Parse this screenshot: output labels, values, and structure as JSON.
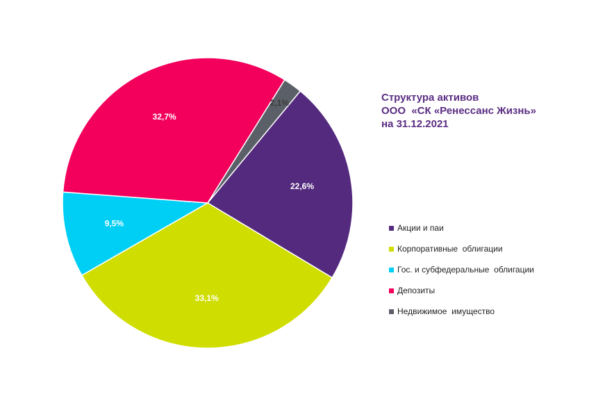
{
  "title_lines": [
    "Структура активов",
    "ООО  «СК «Ренессанс Жизнь»",
    "на 31.12.2021"
  ],
  "chart_data": {
    "type": "pie",
    "title": "Структура активов ООО  «СК «Ренессанс Жизнь» на 31.12.2021",
    "legend_position": "right",
    "start_angle_deg": 39.6,
    "direction": "clockwise",
    "slices": [
      {
        "name": "Акции и паи",
        "value": 22.6,
        "label": "22,6%",
        "color": "#542a7e"
      },
      {
        "name": "Корпоративные  облигации",
        "value": 33.1,
        "label": "33,1%",
        "color": "#cfdd00"
      },
      {
        "name": "Гос. и субфедеральные  облигации",
        "value": 9.5,
        "label": "9,5%",
        "color": "#00cff5"
      },
      {
        "name": "Депозиты",
        "value": 32.7,
        "label": "32,7%",
        "color": "#f2005c"
      },
      {
        "name": "Недвижимое  имущество",
        "value": 2.1,
        "label": "2,1%",
        "color": "#5b6068"
      }
    ]
  }
}
